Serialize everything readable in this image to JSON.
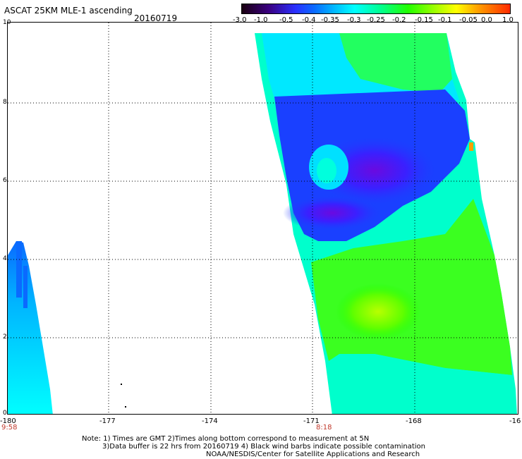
{
  "header": {
    "title": "ASCAT 25KM MLE-1 ascending",
    "date": "20160719"
  },
  "colorbar": {
    "labels": [
      "-3.0",
      "-1.0",
      "-0.5",
      "-0.4",
      "-0.35",
      "-0.3",
      "-0.25",
      "-0.2",
      "-0.15",
      "-0.1",
      "-0.05",
      "0.0",
      "1.0"
    ],
    "colors": [
      "#1a0010",
      "#3a0080",
      "#2a30ff",
      "#0a6aff",
      "#00b4ff",
      "#00ffff",
      "#00ff8c",
      "#22ff00",
      "#9fff00",
      "#ffff00",
      "#ffa000",
      "#ff2a00"
    ]
  },
  "axes": {
    "y_ticks": [
      "10",
      "8",
      "6",
      "4",
      "2",
      "0"
    ],
    "x_ticks": [
      "-180",
      "-177",
      "-174",
      "-171",
      "-168",
      "-16"
    ],
    "pass_times": [
      "9:58",
      "8:18"
    ]
  },
  "notes": {
    "line1": "Note: 1) Times are GMT 2)Times along bottom correspond to measurement at 5N",
    "line2": "3)Data buffer is 22 hrs from 20160719 4) Black wind barbs indicate possible contamination",
    "line3": "NOAA/NESDIS/Center for Satellite Applications and Research"
  }
}
